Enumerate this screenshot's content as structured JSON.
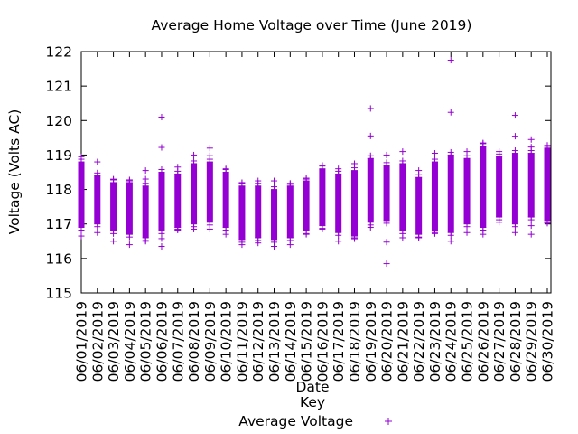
{
  "chart_data": {
    "type": "scatter",
    "title": "Average Home Voltage over Time (June 2019)",
    "xlabel": "Date",
    "ylabel": "Voltage (Volts AC)",
    "ylim": [
      115,
      122
    ],
    "yticks": [
      115,
      116,
      117,
      118,
      119,
      120,
      121,
      122
    ],
    "grid": false,
    "legend": {
      "title": "Key",
      "position": "bottom-center",
      "entry": "Average Voltage",
      "marker": "+"
    },
    "color": "#9400d3",
    "categories": [
      "06/01/2019",
      "06/02/2019",
      "06/03/2019",
      "06/04/2019",
      "06/05/2019",
      "06/06/2019",
      "06/07/2019",
      "06/08/2019",
      "06/09/2019",
      "06/10/2019",
      "06/11/2019",
      "06/12/2019",
      "06/13/2019",
      "06/14/2019",
      "06/15/2019",
      "06/16/2019",
      "06/17/2019",
      "06/18/2019",
      "06/19/2019",
      "06/20/2019",
      "06/21/2019",
      "06/22/2019",
      "06/23/2019",
      "06/24/2019",
      "06/25/2019",
      "06/26/2019",
      "06/27/2019",
      "06/28/2019",
      "06/29/2019",
      "06/30/2019"
    ],
    "series": [
      {
        "name": "Average Voltage",
        "days": [
          {
            "low": 116.9,
            "high": 118.8,
            "min": 116.65,
            "max": 118.95
          },
          {
            "low": 117.0,
            "high": 118.4,
            "min": 116.75,
            "max": 118.8
          },
          {
            "low": 116.8,
            "high": 118.2,
            "min": 116.5,
            "max": 118.3
          },
          {
            "low": 116.7,
            "high": 118.2,
            "min": 116.4,
            "max": 118.25
          },
          {
            "low": 116.6,
            "high": 118.1,
            "min": 116.5,
            "max": 118.55
          },
          {
            "low": 116.8,
            "high": 118.5,
            "min": 116.35,
            "max": 120.1
          },
          {
            "low": 116.9,
            "high": 118.45,
            "min": 116.85,
            "max": 118.65
          },
          {
            "low": 117.0,
            "high": 118.75,
            "min": 116.85,
            "max": 119.0
          },
          {
            "low": 117.05,
            "high": 118.8,
            "min": 116.85,
            "max": 119.2
          },
          {
            "low": 116.9,
            "high": 118.5,
            "min": 116.7,
            "max": 118.6
          },
          {
            "low": 116.55,
            "high": 118.1,
            "min": 116.4,
            "max": 118.2
          },
          {
            "low": 116.6,
            "high": 118.1,
            "min": 116.45,
            "max": 118.25
          },
          {
            "low": 116.55,
            "high": 118.0,
            "min": 116.35,
            "max": 118.25
          },
          {
            "low": 116.6,
            "high": 118.1,
            "min": 116.4,
            "max": 118.15
          },
          {
            "low": 116.8,
            "high": 118.25,
            "min": 116.7,
            "max": 118.3
          },
          {
            "low": 116.95,
            "high": 118.6,
            "min": 116.85,
            "max": 118.7
          },
          {
            "low": 116.75,
            "high": 118.45,
            "min": 116.5,
            "max": 118.6
          },
          {
            "low": 116.65,
            "high": 118.55,
            "min": 116.6,
            "max": 118.75
          },
          {
            "low": 117.05,
            "high": 118.9,
            "min": 116.9,
            "max": 120.35
          },
          {
            "low": 117.1,
            "high": 118.7,
            "min": 115.85,
            "max": 119.0
          },
          {
            "low": 116.8,
            "high": 118.75,
            "min": 116.6,
            "max": 119.1
          },
          {
            "low": 116.7,
            "high": 118.35,
            "min": 116.6,
            "max": 118.55
          },
          {
            "low": 116.8,
            "high": 118.8,
            "min": 116.75,
            "max": 119.05
          },
          {
            "low": 116.75,
            "high": 119.0,
            "min": 116.5,
            "max": 121.75
          },
          {
            "low": 117.0,
            "high": 118.9,
            "min": 116.75,
            "max": 119.1
          },
          {
            "low": 116.9,
            "high": 119.25,
            "min": 116.7,
            "max": 119.35
          },
          {
            "low": 117.2,
            "high": 118.95,
            "min": 117.05,
            "max": 119.1
          },
          {
            "low": 117.0,
            "high": 119.05,
            "min": 116.75,
            "max": 120.15
          },
          {
            "low": 117.2,
            "high": 119.05,
            "min": 116.7,
            "max": 119.45
          },
          {
            "low": 117.1,
            "high": 119.2,
            "min": 117.05,
            "max": 119.25
          }
        ]
      }
    ]
  }
}
